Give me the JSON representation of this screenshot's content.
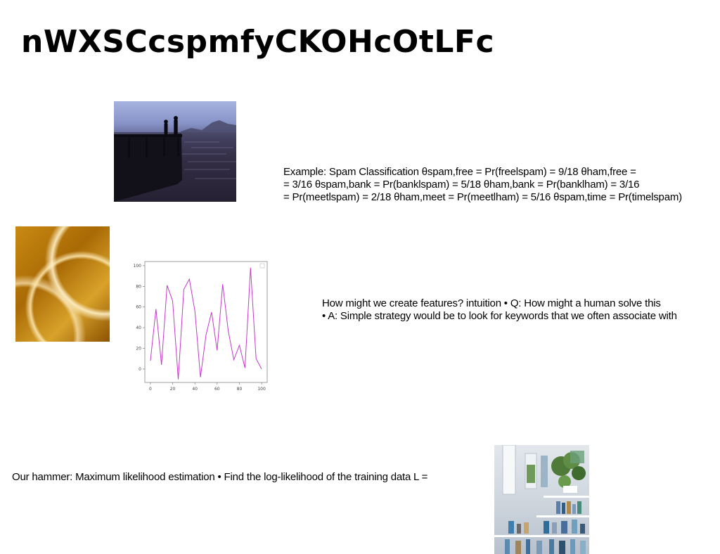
{
  "slide": {
    "title": "nWXSCcspmfyCKOHcOtLFc",
    "text_spam": {
      "lines": [
        "Example: Spam Classification θspam,free = Pr(freelspam) = 9/18 θham,free =",
        "= 3/16 θspam,bank = Pr(banklspam) = 5/18 θham,bank = Pr(banklham) = 3/16",
        "= Pr(meetlspam) = 2/18 θham,meet = Pr(meetlham) = 5/16 θspam,time = Pr(timelspam)"
      ]
    },
    "text_features": {
      "lines": [
        "How might we create features? intuition • Q: How might a human solve this",
        "• A: Simple strategy would be to look for keywords that we often associate with"
      ]
    },
    "text_hammer": {
      "lines": [
        "Our hammer: Maximum likelihood estimation • Find the log-likelihood of the training data L ="
      ]
    }
  },
  "chart_data": {
    "type": "line",
    "x": [
      0,
      5,
      10,
      15,
      20,
      25,
      30,
      35,
      40,
      45,
      50,
      55,
      60,
      65,
      70,
      75,
      80,
      85,
      90,
      95,
      100
    ],
    "series": [
      {
        "values": [
          8,
          58,
          4,
          81,
          66,
          -10,
          77,
          87,
          56,
          -8,
          33,
          55,
          18,
          82,
          37,
          9,
          23,
          1,
          98,
          10,
          0
        ],
        "color": "#c43ac9"
      }
    ],
    "x_ticks": [
      0,
      20,
      40,
      60,
      80,
      100
    ],
    "y_ticks": [
      0,
      20,
      40,
      60,
      80,
      100
    ],
    "xlim": [
      -5,
      105
    ],
    "ylim": [
      -13,
      104
    ],
    "grid": false,
    "legend": "top-right"
  }
}
